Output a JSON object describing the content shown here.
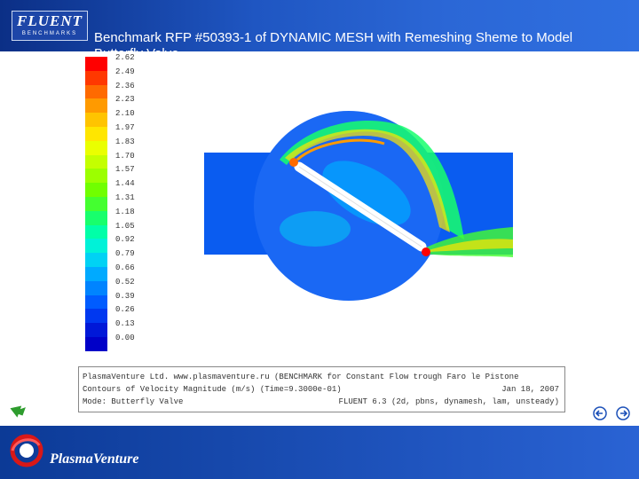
{
  "header": {
    "logo_text": "FLUENT",
    "logo_sub": "BENCHMARKS",
    "title": "Benchmark  RFP #50393-1 of  DYNAMIC MESH with Remeshing  Sheme to Model",
    "title_line2": "Butterfly Valve"
  },
  "legend": {
    "labels": [
      "2.62",
      "2.49",
      "2.36",
      "2.23",
      "2.10",
      "1.97",
      "1.83",
      "1.70",
      "1.57",
      "1.44",
      "1.31",
      "1.18",
      "1.05",
      "0.92",
      "0.79",
      "0.66",
      "0.52",
      "0.39",
      "0.26",
      "0.13",
      "0.00"
    ],
    "colors": [
      "#ff0000",
      "#ff3800",
      "#ff6a00",
      "#ff9a00",
      "#ffc400",
      "#ffe600",
      "#eaff00",
      "#c4ff00",
      "#9cff00",
      "#70ff00",
      "#44ff30",
      "#18ff6c",
      "#00ffa8",
      "#00f2d8",
      "#00d2f4",
      "#00aaff",
      "#0084ff",
      "#005cff",
      "#0038f0",
      "#0018d8",
      "#0000c8"
    ]
  },
  "caption": {
    "line1": "PlasmaVenture Ltd. www.plasmaventure.ru   (BENCHMARK for Constant Flow trough Faro le Pistone",
    "line2": "Contours of Velocity Magnitude (m/s)  (Time=9.3000e-01)",
    "date": "Jan 18, 2007",
    "line3": "Mode: Butterfly Valve",
    "solver": "FLUENT 6.3 (2d, pbns, dynamesh, lam, unsteady)"
  },
  "footer": {
    "brand": "PlasmaVenture"
  },
  "icons": {
    "back": "back-arrow-icon",
    "prev": "previous-slide-icon",
    "next": "next-slide-icon"
  }
}
